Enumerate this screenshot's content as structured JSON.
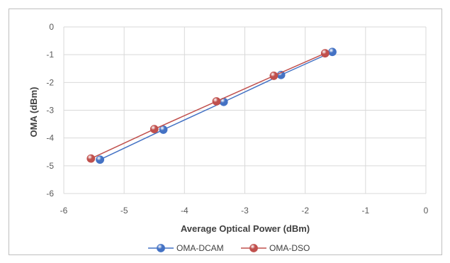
{
  "chart_data": {
    "type": "scatter",
    "title": "",
    "xlabel": "Average Optical Power (dBm)",
    "ylabel": "OMA (dBm)",
    "xlim": [
      -6,
      0
    ],
    "ylim": [
      -6,
      0
    ],
    "xticks": [
      -6,
      -5,
      -4,
      -3,
      -2,
      -1,
      0
    ],
    "yticks": [
      0,
      -1,
      -2,
      -3,
      -4,
      -5,
      -6
    ],
    "grid": true,
    "legend_position": "bottom",
    "series": [
      {
        "name": "OMA-DCAM",
        "color": "#4472C4",
        "x": [
          -5.4,
          -4.35,
          -3.35,
          -2.4,
          -1.55
        ],
        "y": [
          -4.78,
          -3.7,
          -2.7,
          -1.73,
          -0.9
        ]
      },
      {
        "name": "OMA-DSO",
        "color": "#C0504D",
        "x": [
          -5.55,
          -4.5,
          -3.47,
          -2.52,
          -1.67
        ],
        "y": [
          -4.74,
          -3.68,
          -2.68,
          -1.76,
          -0.95
        ]
      }
    ]
  }
}
